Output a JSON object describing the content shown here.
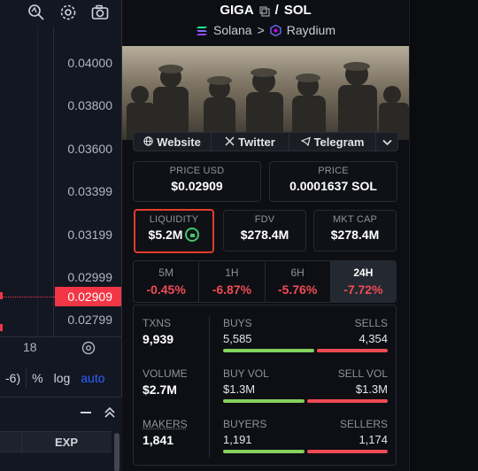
{
  "chart": {
    "price_ticks": [
      "0.04000",
      "0.03800",
      "0.03600",
      "0.03399",
      "0.03199",
      "0.02999",
      "0.02909",
      "0.02799"
    ],
    "current_price": "0.02909",
    "time_label": "18",
    "options": {
      "range": "-6)",
      "percent": "%",
      "log": "log",
      "auto": "auto"
    },
    "bottom": {
      "exp_header": "EXP"
    }
  },
  "header": {
    "base": "GIGA",
    "quote": "SOL",
    "separator": "/",
    "chain": "Solana",
    "chevron": ">",
    "dex": "Raydium"
  },
  "links": {
    "website": "Website",
    "twitter": "Twitter",
    "telegram": "Telegram"
  },
  "metrics": {
    "price_usd": {
      "label": "PRICE USD",
      "value": "$0.02909"
    },
    "price_sol": {
      "label": "PRICE",
      "value": "0.0001637 SOL"
    },
    "liquidity": {
      "label": "LIQUIDITY",
      "value": "$5.2M"
    },
    "fdv": {
      "label": "FDV",
      "value": "$278.4M"
    },
    "mkt_cap": {
      "label": "MKT CAP",
      "value": "$278.4M"
    }
  },
  "timeframes": [
    {
      "label": "5M",
      "change": "-0.45%"
    },
    {
      "label": "1H",
      "change": "-6.87%"
    },
    {
      "label": "6H",
      "change": "-5.76%"
    },
    {
      "label": "24H",
      "change": "-7.72%"
    }
  ],
  "stats": {
    "txns": {
      "label": "TXNS",
      "value": "9,939"
    },
    "volume": {
      "label": "VOLUME",
      "value": "$2.7M"
    },
    "makers": {
      "label": "MAKERS",
      "value": "1,841"
    },
    "buys": {
      "label": "BUYS",
      "value": "5,585",
      "ratio": 0.562
    },
    "sells": {
      "label": "SELLS",
      "value": "4,354"
    },
    "buy_vol": {
      "label": "BUY VOL",
      "value": "$1.3M",
      "ratio": 0.5
    },
    "sell_vol": {
      "label": "SELL VOL",
      "value": "$1.3M"
    },
    "buyers": {
      "label": "BUYERS",
      "value": "1,191",
      "ratio": 0.504
    },
    "sellers": {
      "label": "SELLERS",
      "value": "1,174"
    }
  },
  "colors": {
    "accent_red": "#ef4b55",
    "accent_green": "#84d15e",
    "highlight": "#e23d2b"
  }
}
